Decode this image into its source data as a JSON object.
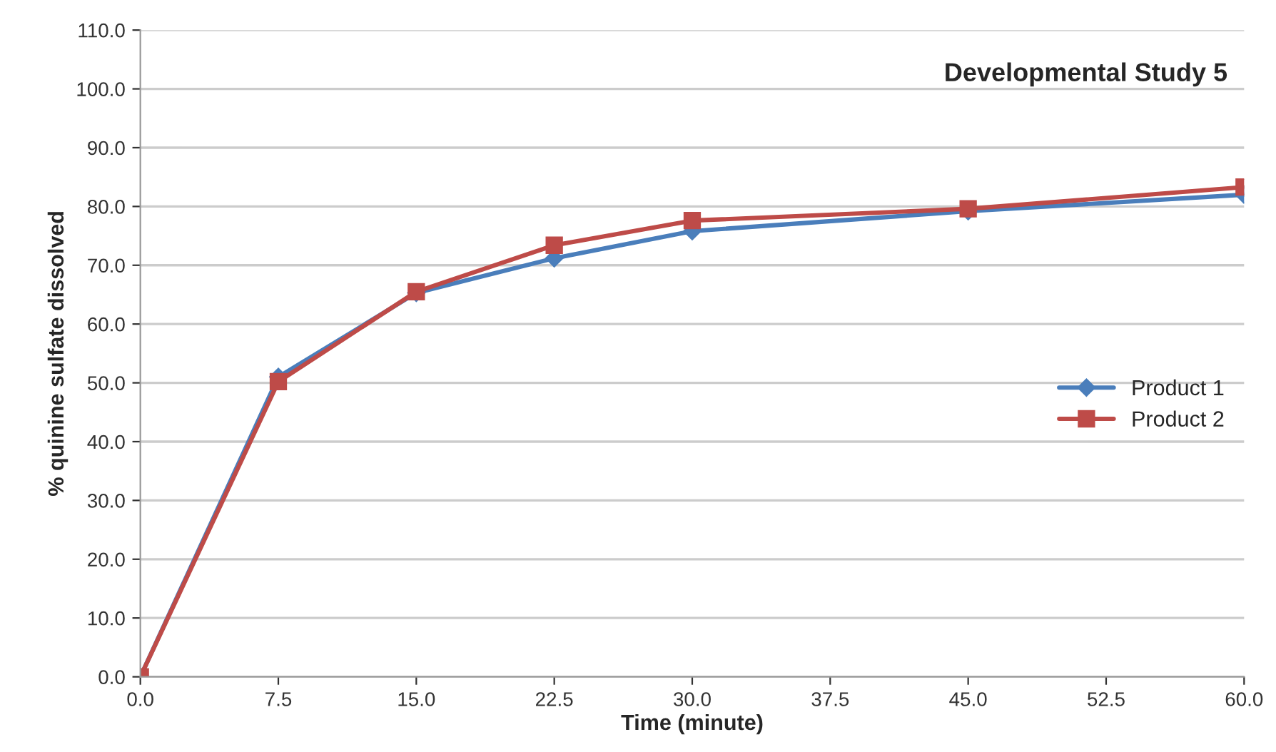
{
  "chart_data": {
    "type": "line",
    "title": "Developmental Study 5",
    "xlabel": "Time (minute)",
    "ylabel": "% quinine sulfate dissolved",
    "x": [
      0,
      7.5,
      15,
      22.5,
      30,
      45,
      60
    ],
    "series": [
      {
        "name": "Product 1",
        "color": "#4a7ebb",
        "marker": "diamond",
        "values": [
          0,
          51.0,
          65.3,
          71.2,
          75.8,
          79.2,
          82.0
        ]
      },
      {
        "name": "Product 2",
        "color": "#be4b48",
        "marker": "square",
        "values": [
          0,
          50.2,
          65.5,
          73.4,
          77.6,
          79.6,
          83.3
        ]
      }
    ],
    "xlim": [
      0,
      60
    ],
    "xticks": [
      {
        "value": 0,
        "label": "0.0"
      },
      {
        "value": 7.5,
        "label": "7.5"
      },
      {
        "value": 15,
        "label": "15.0"
      },
      {
        "value": 22.5,
        "label": "22.5"
      },
      {
        "value": 30,
        "label": "30.0"
      },
      {
        "value": 37.5,
        "label": "37.5"
      },
      {
        "value": 45,
        "label": "45.0"
      },
      {
        "value": 52.5,
        "label": "52.5"
      },
      {
        "value": 60,
        "label": "60.0"
      }
    ],
    "ylim": [
      0,
      110
    ],
    "yticks": [
      {
        "value": 0,
        "label": "0.0"
      },
      {
        "value": 10,
        "label": "10.0"
      },
      {
        "value": 20,
        "label": "20.0"
      },
      {
        "value": 30,
        "label": "30.0"
      },
      {
        "value": 40,
        "label": "40.0"
      },
      {
        "value": 50,
        "label": "50.0"
      },
      {
        "value": 60,
        "label": "60.0"
      },
      {
        "value": 70,
        "label": "70.0"
      },
      {
        "value": 80,
        "label": "80.0"
      },
      {
        "value": 90,
        "label": "90.0"
      },
      {
        "value": 100,
        "label": "100.0"
      },
      {
        "value": 110,
        "label": "110.0"
      }
    ],
    "grid": "y",
    "legend": "right",
    "line_style": "solid"
  }
}
